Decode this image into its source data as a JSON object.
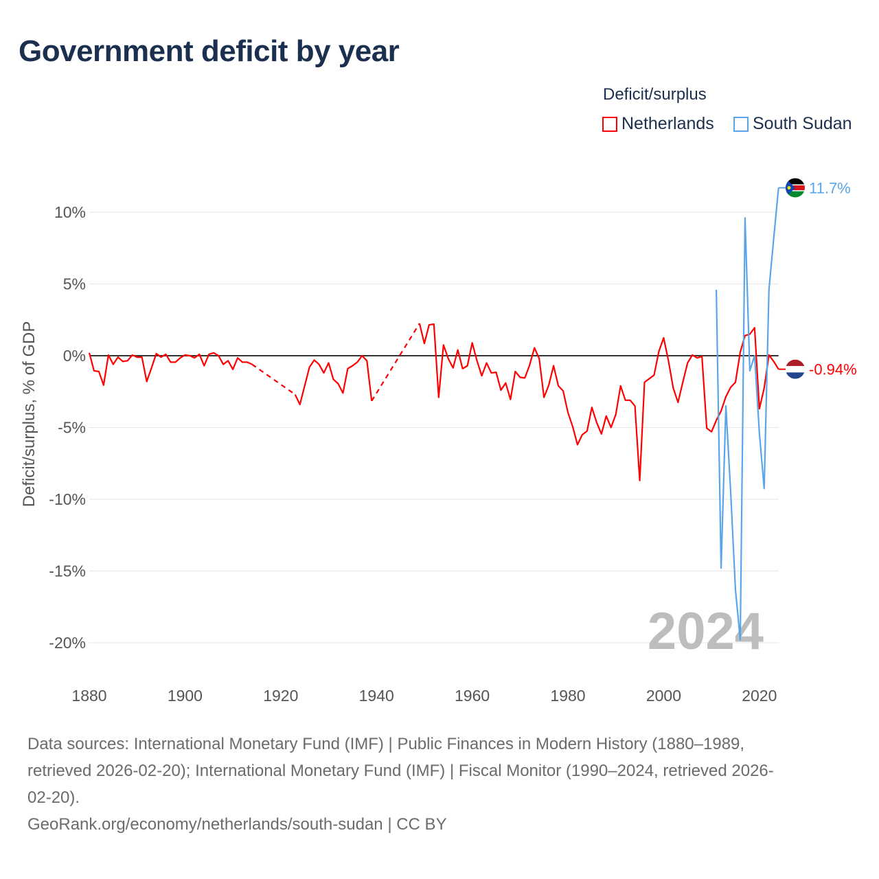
{
  "title": "Government deficit by year",
  "legend": {
    "title": "Deficit/surplus",
    "items": [
      {
        "name": "Netherlands",
        "color": "#ff0000"
      },
      {
        "name": "South Sudan",
        "color": "#5aa5ea"
      }
    ]
  },
  "watermark_year": "2024",
  "footer": {
    "lines": [
      "Data sources: International Monetary Fund (IMF) | Public Finances in Modern History (1880–1989,",
      "retrieved 2026-02-20); International Monetary Fund (IMF) | Fiscal Monitor (1990–2024, retrieved 2026-",
      "02-20).",
      "GeoRank.org/economy/netherlands/south-sudan | CC BY"
    ]
  },
  "chart_data": {
    "type": "line",
    "title": "Government deficit by year",
    "xlabel": "",
    "ylabel": "Deficit/surplus, % of GDP",
    "xlim": [
      1880,
      2024
    ],
    "ylim": [
      -22,
      12
    ],
    "x_ticks": [
      1880,
      1900,
      1920,
      1940,
      1960,
      1980,
      2000,
      2020
    ],
    "x_tick_labels": [
      "1880",
      "1900",
      "1920",
      "1940",
      "1960",
      "1980",
      "2000",
      "2020"
    ],
    "y_ticks": [
      10,
      5,
      0,
      -5,
      -10,
      -15,
      -20
    ],
    "y_tick_labels": [
      "10%",
      "5%",
      "0%",
      "-5%",
      "-10%",
      "-15%",
      "-20%"
    ],
    "grid": true,
    "legend_position": "top-right",
    "series": [
      {
        "name": "Netherlands",
        "color": "#ff0000",
        "end_label": "-0.94%",
        "points": [
          [
            1880,
            0.2
          ],
          [
            1881,
            -1.05
          ],
          [
            1882,
            -1.1
          ],
          [
            1883,
            -2.05
          ],
          [
            1884,
            0.05
          ],
          [
            1885,
            -0.6
          ],
          [
            1886,
            -0.1
          ],
          [
            1887,
            -0.4
          ],
          [
            1888,
            -0.35
          ],
          [
            1889,
            0.05
          ],
          [
            1890,
            -0.1
          ],
          [
            1891,
            -0.1
          ],
          [
            1892,
            -1.8
          ],
          [
            1893,
            -0.85
          ],
          [
            1894,
            0.15
          ],
          [
            1895,
            -0.1
          ],
          [
            1896,
            0.1
          ],
          [
            1897,
            -0.45
          ],
          [
            1898,
            -0.45
          ],
          [
            1899,
            -0.15
          ],
          [
            1900,
            0.05
          ],
          [
            1901,
            0.0
          ],
          [
            1902,
            -0.15
          ],
          [
            1903,
            0.1
          ],
          [
            1904,
            -0.7
          ],
          [
            1905,
            0.1
          ],
          [
            1906,
            0.2
          ],
          [
            1907,
            0.0
          ],
          [
            1908,
            -0.6
          ],
          [
            1909,
            -0.35
          ],
          [
            1910,
            -0.95
          ],
          [
            1911,
            -0.15
          ],
          [
            1912,
            -0.45
          ],
          [
            1913,
            -0.45
          ],
          [
            1914,
            -0.6
          ],
          [
            1923,
            -2.7
          ],
          [
            1924,
            -3.4
          ],
          [
            1925,
            -2.1
          ],
          [
            1926,
            -0.8
          ],
          [
            1927,
            -0.3
          ],
          [
            1928,
            -0.6
          ],
          [
            1929,
            -1.2
          ],
          [
            1930,
            -0.5
          ],
          [
            1931,
            -1.65
          ],
          [
            1932,
            -1.95
          ],
          [
            1933,
            -2.6
          ],
          [
            1934,
            -0.9
          ],
          [
            1935,
            -0.7
          ],
          [
            1936,
            -0.45
          ],
          [
            1937,
            0.0
          ],
          [
            1938,
            -0.35
          ],
          [
            1939,
            -3.15
          ],
          [
            1949,
            2.25
          ],
          [
            1950,
            0.85
          ],
          [
            1951,
            2.15
          ],
          [
            1952,
            2.2
          ],
          [
            1953,
            -2.9
          ],
          [
            1954,
            0.75
          ],
          [
            1955,
            -0.2
          ],
          [
            1956,
            -0.85
          ],
          [
            1957,
            0.4
          ],
          [
            1958,
            -0.9
          ],
          [
            1959,
            -0.7
          ],
          [
            1960,
            0.9
          ],
          [
            1961,
            -0.35
          ],
          [
            1962,
            -1.4
          ],
          [
            1963,
            -0.5
          ],
          [
            1964,
            -1.2
          ],
          [
            1965,
            -1.15
          ],
          [
            1966,
            -2.4
          ],
          [
            1967,
            -1.9
          ],
          [
            1968,
            -3.05
          ],
          [
            1969,
            -1.1
          ],
          [
            1970,
            -1.5
          ],
          [
            1971,
            -1.55
          ],
          [
            1972,
            -0.65
          ],
          [
            1973,
            0.55
          ],
          [
            1974,
            -0.2
          ],
          [
            1975,
            -2.9
          ],
          [
            1976,
            -2.05
          ],
          [
            1977,
            -0.7
          ],
          [
            1978,
            -2.1
          ],
          [
            1979,
            -2.45
          ],
          [
            1980,
            -3.95
          ],
          [
            1981,
            -4.95
          ],
          [
            1982,
            -6.2
          ],
          [
            1983,
            -5.5
          ],
          [
            1984,
            -5.25
          ],
          [
            1985,
            -3.6
          ],
          [
            1986,
            -4.65
          ],
          [
            1987,
            -5.45
          ],
          [
            1988,
            -4.2
          ],
          [
            1989,
            -5.0
          ],
          [
            1990,
            -4.1
          ],
          [
            1991,
            -2.1
          ],
          [
            1992,
            -3.1
          ],
          [
            1993,
            -3.1
          ],
          [
            1994,
            -3.5
          ],
          [
            1995,
            -8.7
          ],
          [
            1996,
            -1.85
          ],
          [
            1997,
            -1.6
          ],
          [
            1998,
            -1.35
          ],
          [
            1999,
            0.3
          ],
          [
            2000,
            1.25
          ],
          [
            2001,
            -0.35
          ],
          [
            2002,
            -2.25
          ],
          [
            2003,
            -3.25
          ],
          [
            2004,
            -1.85
          ],
          [
            2005,
            -0.5
          ],
          [
            2006,
            0.05
          ],
          [
            2007,
            -0.15
          ],
          [
            2008,
            -0.05
          ],
          [
            2009,
            -5.05
          ],
          [
            2010,
            -5.3
          ],
          [
            2011,
            -4.5
          ],
          [
            2012,
            -3.85
          ],
          [
            2013,
            -2.85
          ],
          [
            2014,
            -2.2
          ],
          [
            2015,
            -1.85
          ],
          [
            2016,
            0.25
          ],
          [
            2017,
            1.4
          ],
          [
            2018,
            1.5
          ],
          [
            2019,
            1.95
          ],
          [
            2020,
            -3.7
          ],
          [
            2021,
            -2.25
          ],
          [
            2022,
            0.05
          ],
          [
            2023,
            -0.4
          ],
          [
            2024,
            -0.94
          ]
        ]
      },
      {
        "name": "South Sudan",
        "color": "#5aa5ea",
        "end_label": "11.7%",
        "points": [
          [
            2011,
            4.6
          ],
          [
            2012,
            -14.8
          ],
          [
            2013,
            -3.5
          ],
          [
            2014,
            -9.5
          ],
          [
            2015,
            -16.3
          ],
          [
            2016,
            -19.8
          ],
          [
            2017,
            9.6
          ],
          [
            2018,
            -1.05
          ],
          [
            2019,
            0.0
          ],
          [
            2020,
            -5.4
          ],
          [
            2021,
            -9.25
          ],
          [
            2022,
            4.6
          ],
          [
            2023,
            8.2
          ],
          [
            2024,
            11.7
          ]
        ]
      }
    ]
  }
}
